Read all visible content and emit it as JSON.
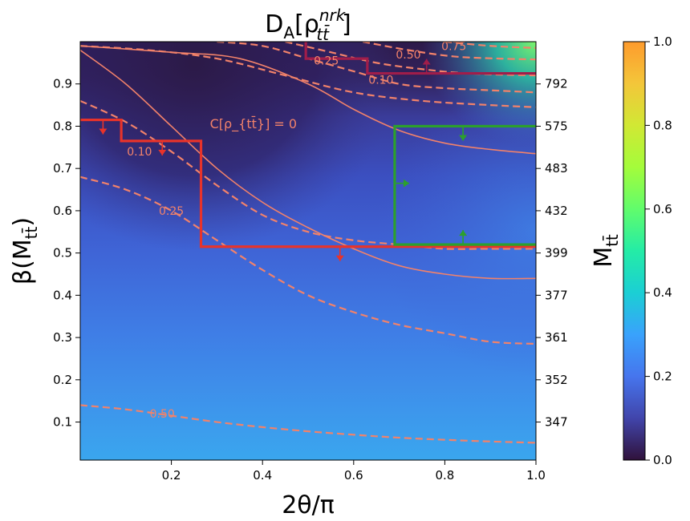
{
  "chart_data": {
    "type": "heatmap",
    "title": "D_A[ρ^{nrk}_{tt̄}]",
    "xlabel": "2θ/π",
    "ylabel": "β(M_{tt̄})",
    "ylabel_right": "M_{tt̄}",
    "xlim": [
      0.0,
      1.0
    ],
    "ylim": [
      0.01,
      1.0
    ],
    "x_ticks": [
      0.2,
      0.4,
      0.6,
      0.8,
      1.0
    ],
    "x_tick_labels": [
      "0.2",
      "0.4",
      "0.6",
      "0.8",
      "1.0"
    ],
    "y_ticks": [
      0.1,
      0.2,
      0.3,
      0.4,
      0.5,
      0.6,
      0.7,
      0.8,
      0.9
    ],
    "y_tick_labels": [
      "0.1",
      "0.2",
      "0.3",
      "0.4",
      "0.5",
      "0.6",
      "0.7",
      "0.8",
      "0.9"
    ],
    "right_ticks": [
      {
        "beta": 0.1,
        "label": "347"
      },
      {
        "beta": 0.2,
        "label": "352"
      },
      {
        "beta": 0.3,
        "label": "361"
      },
      {
        "beta": 0.4,
        "label": "377"
      },
      {
        "beta": 0.5,
        "label": "399"
      },
      {
        "beta": 0.6,
        "label": "432"
      },
      {
        "beta": 0.7,
        "label": "483"
      },
      {
        "beta": 0.8,
        "label": "575"
      },
      {
        "beta": 0.9,
        "label": "792"
      }
    ],
    "colorbar": {
      "colormap": "turbo",
      "range": [
        0.0,
        1.0
      ],
      "ticks": [
        0.0,
        0.2,
        0.4,
        0.6,
        0.8,
        1.0
      ],
      "tick_labels": [
        "0.0",
        "0.2",
        "0.4",
        "0.6",
        "0.8",
        "1.0"
      ]
    },
    "dashed_contours": [
      {
        "label": "0.10",
        "color": "#f2826a",
        "label_at": [
          0.13,
          0.74
        ],
        "points": [
          [
            0.0,
            0.86
          ],
          [
            0.1,
            0.81
          ],
          [
            0.2,
            0.74
          ],
          [
            0.3,
            0.66
          ],
          [
            0.4,
            0.59
          ],
          [
            0.5,
            0.55
          ],
          [
            0.6,
            0.53
          ],
          [
            0.7,
            0.52
          ],
          [
            0.8,
            0.51
          ],
          [
            0.9,
            0.51
          ],
          [
            1.0,
            0.51
          ]
        ]
      },
      {
        "label": "0.25",
        "color": "#f2826a",
        "label_at": [
          0.2,
          0.6
        ],
        "points": [
          [
            0.0,
            0.68
          ],
          [
            0.1,
            0.65
          ],
          [
            0.2,
            0.6
          ],
          [
            0.3,
            0.53
          ],
          [
            0.4,
            0.46
          ],
          [
            0.5,
            0.4
          ],
          [
            0.6,
            0.36
          ],
          [
            0.7,
            0.33
          ],
          [
            0.8,
            0.31
          ],
          [
            0.9,
            0.29
          ],
          [
            1.0,
            0.285
          ]
        ]
      },
      {
        "label": "0.50",
        "color": "#f2826a",
        "label_at": [
          0.18,
          0.12
        ],
        "points": [
          [
            0.0,
            0.14
          ],
          [
            0.1,
            0.13
          ],
          [
            0.2,
            0.115
          ],
          [
            0.3,
            0.1
          ],
          [
            0.4,
            0.088
          ],
          [
            0.5,
            0.078
          ],
          [
            0.6,
            0.07
          ],
          [
            0.7,
            0.063
          ],
          [
            0.8,
            0.058
          ],
          [
            0.9,
            0.054
          ],
          [
            1.0,
            0.051
          ]
        ]
      },
      {
        "label": "0.10",
        "color": "#f2826a",
        "label_at": [
          0.66,
          0.91
        ],
        "points": [
          [
            0.3,
            1.0
          ],
          [
            0.4,
            0.99
          ],
          [
            0.5,
            0.96
          ],
          [
            0.6,
            0.93
          ],
          [
            0.7,
            0.9
          ],
          [
            0.8,
            0.89
          ],
          [
            0.9,
            0.885
          ],
          [
            1.0,
            0.88
          ]
        ]
      },
      {
        "label": "0.25",
        "color": "#f2826a",
        "label_at": [
          0.54,
          0.955
        ],
        "points": [
          [
            0.45,
            1.0
          ],
          [
            0.55,
            0.975
          ],
          [
            0.65,
            0.95
          ],
          [
            0.75,
            0.935
          ],
          [
            0.85,
            0.925
          ],
          [
            1.0,
            0.92
          ]
        ]
      },
      {
        "label": "0.50",
        "color": "#f2826a",
        "label_at": [
          0.72,
          0.97
        ],
        "points": [
          [
            0.62,
            1.0
          ],
          [
            0.72,
            0.98
          ],
          [
            0.82,
            0.965
          ],
          [
            0.92,
            0.96
          ],
          [
            1.0,
            0.958
          ]
        ]
      },
      {
        "label": "0.75",
        "color": "#f2826a",
        "label_at": [
          0.82,
          0.99
        ],
        "points": [
          [
            0.8,
            1.0
          ],
          [
            0.9,
            0.99
          ],
          [
            1.0,
            0.985
          ]
        ]
      },
      {
        "label": "",
        "color": "#f2826a",
        "points": [
          [
            0.0,
            0.99
          ],
          [
            0.15,
            0.98
          ],
          [
            0.3,
            0.96
          ],
          [
            0.45,
            0.92
          ],
          [
            0.6,
            0.88
          ],
          [
            0.75,
            0.86
          ],
          [
            0.9,
            0.85
          ],
          [
            1.0,
            0.845
          ]
        ]
      }
    ],
    "solid_contours": [
      {
        "label": "C[ρ_{tt̄}] = 0",
        "color": "#f2826a",
        "label_at": [
          0.38,
          0.805
        ],
        "points": [
          [
            0.0,
            0.98
          ],
          [
            0.1,
            0.9
          ],
          [
            0.2,
            0.8
          ],
          [
            0.3,
            0.7
          ],
          [
            0.4,
            0.62
          ],
          [
            0.5,
            0.56
          ],
          [
            0.6,
            0.51
          ],
          [
            0.7,
            0.47
          ],
          [
            0.8,
            0.45
          ],
          [
            0.9,
            0.44
          ],
          [
            1.0,
            0.44
          ]
        ]
      },
      {
        "label": "",
        "color": "#f2826a",
        "points": [
          [
            0.0,
            0.99
          ],
          [
            0.2,
            0.975
          ],
          [
            0.35,
            0.96
          ],
          [
            0.5,
            0.9
          ],
          [
            0.6,
            0.84
          ],
          [
            0.7,
            0.79
          ],
          [
            0.8,
            0.76
          ],
          [
            0.9,
            0.745
          ],
          [
            1.0,
            0.735
          ]
        ]
      }
    ],
    "regions": [
      {
        "name": "red",
        "color": "#e8332a",
        "points": [
          [
            0.0,
            0.815
          ],
          [
            0.09,
            0.815
          ],
          [
            0.09,
            0.765
          ],
          [
            0.265,
            0.765
          ],
          [
            0.265,
            0.515
          ],
          [
            1.0,
            0.515
          ]
        ],
        "arrows": [
          [
            0.05,
            0.815
          ],
          [
            0.18,
            0.765
          ],
          [
            0.57,
            0.515
          ]
        ],
        "arrow_dir": "down"
      },
      {
        "name": "green",
        "color": "#2ca02c",
        "points": [
          [
            1.0,
            0.8
          ],
          [
            0.69,
            0.8
          ],
          [
            0.69,
            0.52
          ],
          [
            1.0,
            0.52
          ]
        ],
        "arrows_down": [
          [
            0.84,
            0.8
          ]
        ],
        "arrows_right": [
          [
            0.69,
            0.665
          ]
        ],
        "arrows_up": [
          [
            0.84,
            0.52
          ]
        ]
      },
      {
        "name": "crimson",
        "color": "#a01d4a",
        "points": [
          [
            0.495,
            1.0
          ],
          [
            0.495,
            0.96
          ],
          [
            0.63,
            0.96
          ],
          [
            0.63,
            0.925
          ],
          [
            1.0,
            0.925
          ]
        ],
        "arrows_up": [
          [
            0.76,
            0.925
          ]
        ]
      }
    ]
  }
}
